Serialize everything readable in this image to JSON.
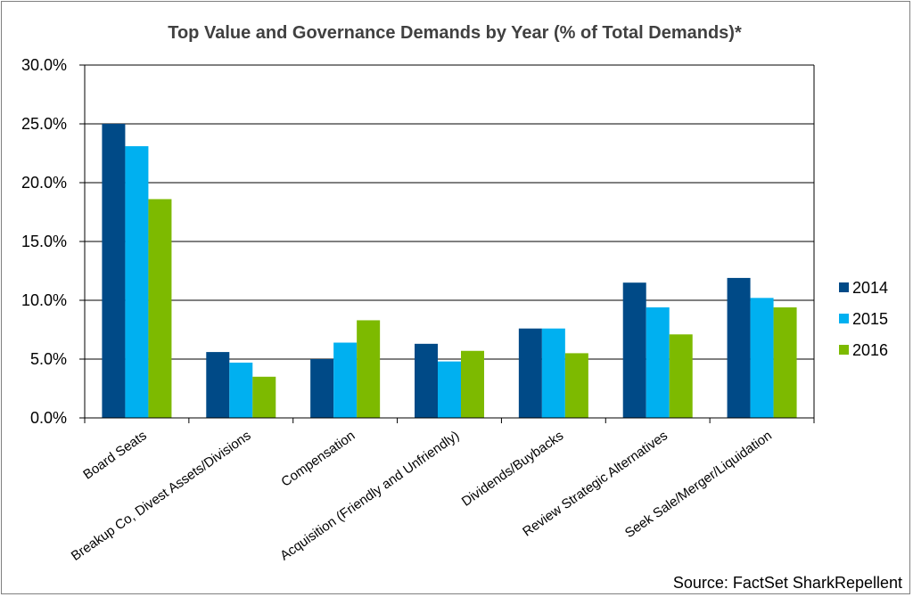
{
  "chart_data": {
    "type": "bar",
    "title": "Top Value and Governance Demands by Year (% of Total Demands)*",
    "xlabel": "",
    "ylabel": "",
    "ylim": [
      0,
      30
    ],
    "yticks": [
      "0.0%",
      "5.0%",
      "10.0%",
      "15.0%",
      "20.0%",
      "25.0%",
      "30.0%"
    ],
    "grid": true,
    "legend_position": "right",
    "categories": [
      "Board Seats",
      "Breakup Co, Divest Assets/Divisions",
      "Compensation",
      "Acquisition (Friendly and Unfriendly)",
      "Dividends/Buybacks",
      "Review Strategic Alternatives",
      "Seek Sale/Merger/Liquidation"
    ],
    "series": [
      {
        "name": "2014",
        "color": "#004a87",
        "values": [
          25.0,
          5.6,
          5.0,
          6.3,
          7.6,
          11.5,
          11.9
        ]
      },
      {
        "name": "2015",
        "color": "#00b0f0",
        "values": [
          23.1,
          4.7,
          6.4,
          4.8,
          7.6,
          9.4,
          10.2
        ]
      },
      {
        "name": "2016",
        "color": "#7dba00",
        "values": [
          18.6,
          3.5,
          8.3,
          5.7,
          5.5,
          7.1,
          9.4
        ]
      }
    ],
    "source": "Source: FactSet SharkRepellent"
  }
}
